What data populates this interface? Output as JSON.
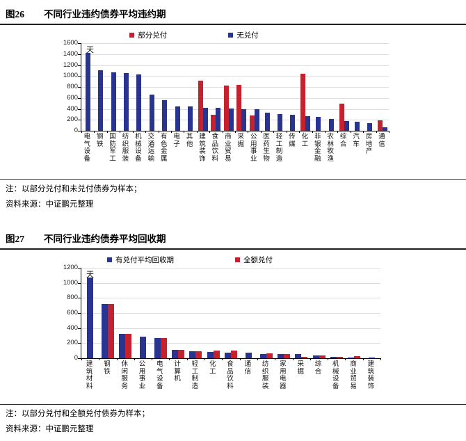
{
  "fig26": {
    "label": "图26",
    "title": "不同行业违约债券平均违约期",
    "note": "注：以部分兑付和未兑付债券为样本；",
    "source": "资料来源：中证鹏元整理"
  },
  "fig27": {
    "label": "图27",
    "title": "不同行业违约债券平均回收期",
    "note": "注：以部分兑付和全额兑付债券为样本；",
    "source": "资料来源：中证鹏元整理"
  },
  "colors": {
    "partial_red": "#C4222E",
    "navy_blue": "#293491",
    "grid": "#DCDCDC",
    "axis": "#000000",
    "rule": "#1F1F1F"
  },
  "chart_data": [
    {
      "type": "bar",
      "title": "不同行业违约债券平均违约期",
      "unit": "天",
      "ylabel": "天",
      "ylim": [
        0,
        1600
      ],
      "ytick_step": 200,
      "grid": true,
      "legend_position": "top",
      "categories": [
        "电气设备",
        "钢铁",
        "国防军工",
        "纺织服装",
        "机械设备",
        "交通运输",
        "有色金属",
        "电子",
        "其他",
        "建筑装饰",
        "食品饮料",
        "商业贸易",
        "采掘",
        "公用事业",
        "医药生物",
        "轻工制造",
        "传媒",
        "化工",
        "非银金融",
        "农林牧渔",
        "综合",
        "汽车",
        "房地产",
        "通信"
      ],
      "series": [
        {
          "name": "部分兑付",
          "color_key": "partial_red",
          "values": [
            0,
            0,
            0,
            0,
            0,
            0,
            0,
            0,
            0,
            920,
            290,
            830,
            840,
            280,
            0,
            0,
            0,
            1040,
            0,
            0,
            500,
            0,
            0,
            190
          ]
        },
        {
          "name": "无兑付",
          "color_key": "navy_blue",
          "values": [
            1420,
            1100,
            1070,
            1050,
            1030,
            655,
            560,
            450,
            445,
            420,
            420,
            410,
            390,
            390,
            330,
            310,
            290,
            265,
            250,
            215,
            175,
            165,
            145,
            70
          ]
        }
      ]
    },
    {
      "type": "bar",
      "title": "不同行业违约债券平均回收期",
      "unit": "天",
      "ylabel": "天",
      "ylim": [
        0,
        1200
      ],
      "ytick_step": 200,
      "grid": true,
      "legend_position": "top",
      "categories": [
        "建筑材料",
        "钢铁",
        "休闲服务",
        "公用事业",
        "电气设备",
        "计算机",
        "轻工制造",
        "化工",
        "食品饮料",
        "通信",
        "纺织服装",
        "家用电器",
        "采掘",
        "综合",
        "机械设备",
        "商业贸易",
        "建筑装饰"
      ],
      "series": [
        {
          "name": "有兑付平均回收期",
          "color_key": "navy_blue",
          "values": [
            1070,
            720,
            320,
            285,
            265,
            115,
            90,
            80,
            70,
            75,
            60,
            55,
            60,
            35,
            15,
            10,
            5
          ]
        },
        {
          "name": "全额兑付",
          "color_key": "partial_red",
          "values": [
            0,
            720,
            320,
            0,
            265,
            115,
            90,
            105,
            100,
            0,
            65,
            55,
            20,
            40,
            15,
            25,
            0
          ]
        }
      ]
    }
  ]
}
